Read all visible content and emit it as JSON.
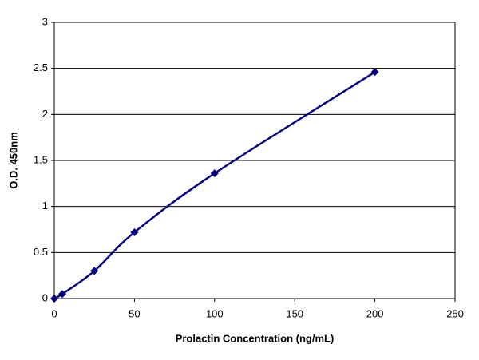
{
  "chart_data": {
    "type": "line",
    "x_label": "Prolactin Concentration (ng/mL)",
    "y_label": "O.D. 450nm",
    "x": [
      0,
      5,
      25,
      50,
      100,
      200
    ],
    "series": [
      {
        "color": "#000080",
        "values": [
          0.0,
          0.05,
          0.3,
          0.72,
          1.36,
          2.46
        ]
      }
    ],
    "xlim": [
      0,
      250
    ],
    "xticks": [
      0,
      50,
      100,
      150,
      200,
      250
    ],
    "ylim": [
      0,
      3
    ],
    "yticks": [
      0,
      0.5,
      1,
      1.5,
      2,
      2.5,
      3
    ],
    "grid": true,
    "smooth": true
  }
}
